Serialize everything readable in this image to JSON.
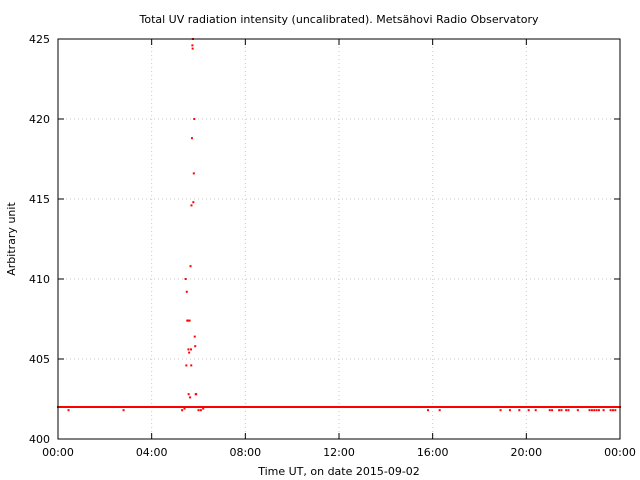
{
  "chart_data": {
    "type": "scatter",
    "title": "Total UV radiation intensity (uncalibrated). Metsähovi Radio Observatory",
    "xlabel": "Time UT, on date 2015-09-02",
    "ylabel": "Arbitrary unit",
    "xlim": [
      0,
      24
    ],
    "ylim": [
      400,
      425
    ],
    "x_unit": "hours UT",
    "x_ticks": [
      0,
      4,
      8,
      12,
      16,
      20,
      24
    ],
    "x_tick_labels": [
      "00:00",
      "04:00",
      "08:00",
      "12:00",
      "16:00",
      "20:00",
      "00:00"
    ],
    "y_ticks": [
      400,
      405,
      410,
      415,
      420,
      425
    ],
    "y_tick_labels": [
      "400",
      "405",
      "410",
      "415",
      "420",
      "425"
    ],
    "grid": true,
    "legend": "none",
    "series": [
      {
        "color": "#ff0000",
        "baseline": {
          "value": 402.0,
          "x_range": [
            0,
            24
          ],
          "spacing": 0.02
        },
        "points": [
          [
            0.45,
            401.8
          ],
          [
            2.8,
            401.8
          ],
          [
            5.3,
            401.8
          ],
          [
            5.4,
            401.9
          ],
          [
            5.45,
            410.0
          ],
          [
            5.48,
            404.6
          ],
          [
            5.5,
            409.2
          ],
          [
            5.52,
            407.4
          ],
          [
            5.55,
            407.4
          ],
          [
            5.57,
            405.6
          ],
          [
            5.58,
            402.8
          ],
          [
            5.6,
            405.4
          ],
          [
            5.62,
            407.4
          ],
          [
            5.64,
            402.6
          ],
          [
            5.66,
            410.8
          ],
          [
            5.68,
            405.6
          ],
          [
            5.69,
            404.6
          ],
          [
            5.7,
            414.6
          ],
          [
            5.72,
            418.8
          ],
          [
            5.74,
            424.6
          ],
          [
            5.75,
            424.4
          ],
          [
            5.76,
            425.0
          ],
          [
            5.78,
            414.8
          ],
          [
            5.8,
            416.6
          ],
          [
            5.82,
            420.0
          ],
          [
            5.84,
            406.4
          ],
          [
            5.86,
            405.8
          ],
          [
            5.88,
            402.8
          ],
          [
            5.9,
            402.8
          ],
          [
            6.0,
            401.8
          ],
          [
            6.1,
            401.8
          ],
          [
            6.2,
            401.9
          ],
          [
            15.8,
            401.8
          ],
          [
            16.3,
            401.8
          ],
          [
            18.9,
            401.8
          ],
          [
            19.3,
            401.8
          ],
          [
            19.7,
            401.8
          ],
          [
            20.1,
            401.8
          ],
          [
            20.4,
            401.8
          ],
          [
            21.0,
            401.8
          ],
          [
            21.1,
            401.8
          ],
          [
            21.4,
            401.8
          ],
          [
            21.5,
            401.8
          ],
          [
            21.7,
            401.8
          ],
          [
            21.8,
            401.8
          ],
          [
            22.2,
            401.8
          ],
          [
            22.7,
            401.8
          ],
          [
            22.8,
            401.8
          ],
          [
            22.9,
            401.8
          ],
          [
            23.0,
            401.8
          ],
          [
            23.1,
            401.8
          ],
          [
            23.3,
            401.8
          ],
          [
            23.6,
            401.8
          ],
          [
            23.7,
            401.8
          ],
          [
            23.8,
            401.8
          ]
        ]
      }
    ]
  }
}
